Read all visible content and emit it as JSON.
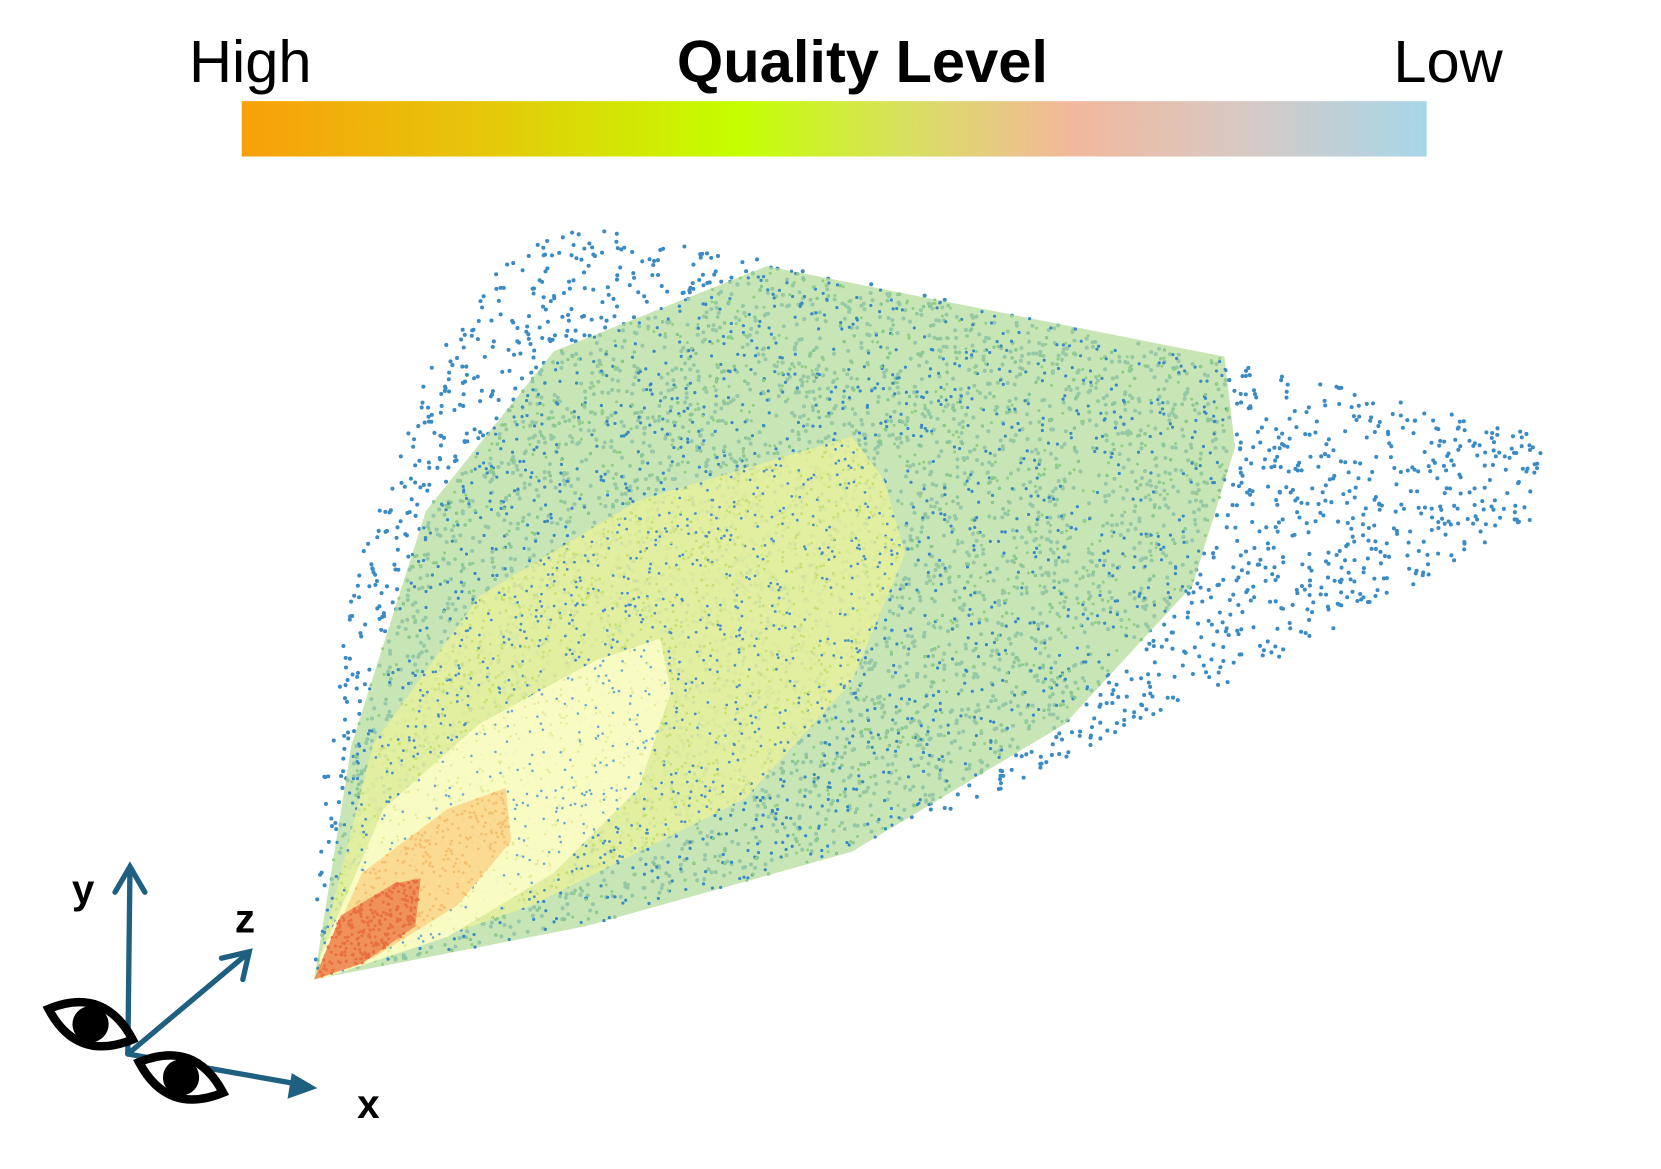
{
  "colorbar": {
    "title": "Quality Level",
    "left_label": "High",
    "right_label": "Low"
  },
  "axes": {
    "y": "y",
    "z": "z",
    "x": "x"
  }
}
